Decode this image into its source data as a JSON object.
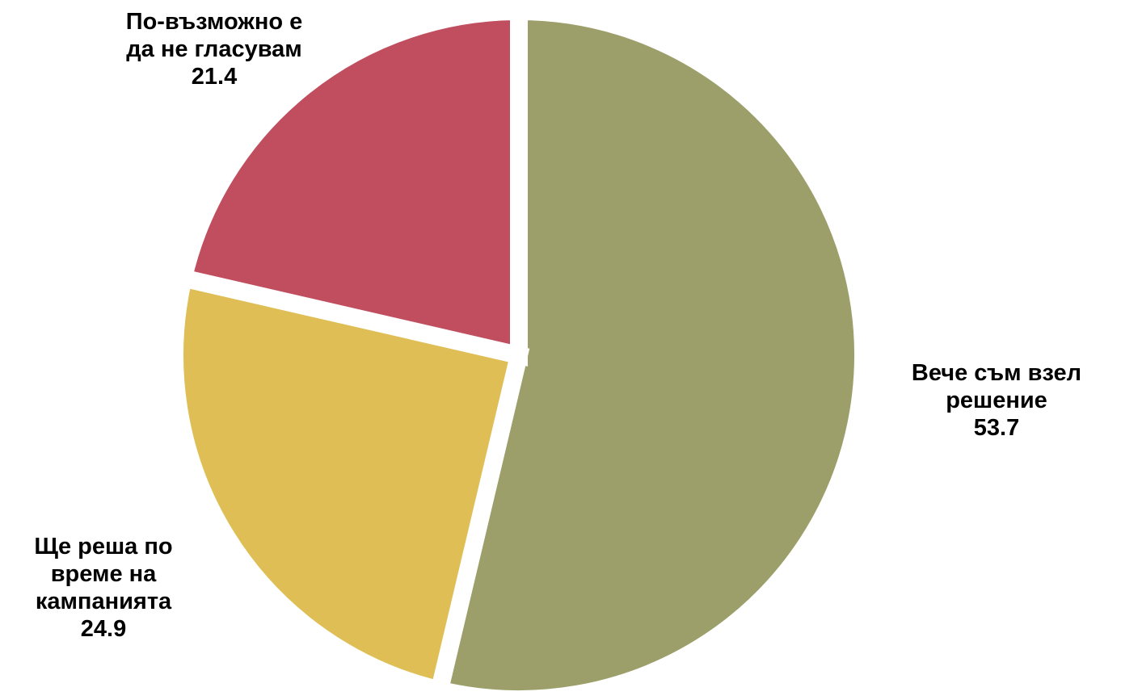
{
  "chart_data": {
    "type": "pie",
    "title": "",
    "slices": [
      {
        "category": "Вече съм взел решение",
        "label_lines": [
          "Вече съм взел",
          "решение"
        ],
        "value": 53.7,
        "value_text": "53.7",
        "color": "#9c9f6a"
      },
      {
        "category": "Ще реша по време на кампанията",
        "label_lines": [
          "Ще реша по",
          "време на",
          "кампанията"
        ],
        "value": 24.9,
        "value_text": "24.9",
        "color": "#dfbf55"
      },
      {
        "category": "По-възможно е да не гласувам",
        "label_lines": [
          "По-възможно е",
          "да не гласувам"
        ],
        "value": 21.4,
        "value_text": "21.4",
        "color": "#c04e5e"
      }
    ],
    "legend": "none",
    "data_labels": "category and value"
  }
}
